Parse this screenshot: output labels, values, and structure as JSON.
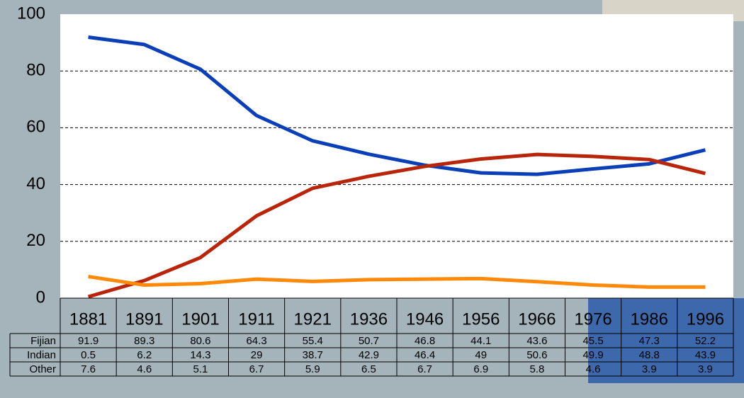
{
  "chart_data": {
    "type": "line",
    "categories": [
      "1881",
      "1891",
      "1901",
      "1911",
      "1921",
      "1936",
      "1946",
      "1956",
      "1966",
      "1976",
      "1986",
      "1996"
    ],
    "series": [
      {
        "name": "Fijian",
        "color": "#0b3fb8",
        "values": [
          91.9,
          89.3,
          80.6,
          64.3,
          55.4,
          50.7,
          46.8,
          44.1,
          43.6,
          45.5,
          47.3,
          52.2
        ]
      },
      {
        "name": "Indian",
        "color": "#b8250a",
        "values": [
          0.5,
          6.2,
          14.3,
          29,
          38.7,
          42.9,
          46.4,
          49,
          50.6,
          49.9,
          48.8,
          43.9
        ]
      },
      {
        "name": "Other",
        "color": "#ff8a0a",
        "values": [
          7.6,
          4.6,
          5.1,
          6.7,
          5.9,
          6.5,
          6.7,
          6.9,
          5.8,
          4.6,
          3.9,
          3.9
        ]
      }
    ],
    "ylim": [
      0,
      100
    ],
    "yticks": [
      0,
      20,
      40,
      60,
      80,
      100
    ],
    "grid": true
  }
}
